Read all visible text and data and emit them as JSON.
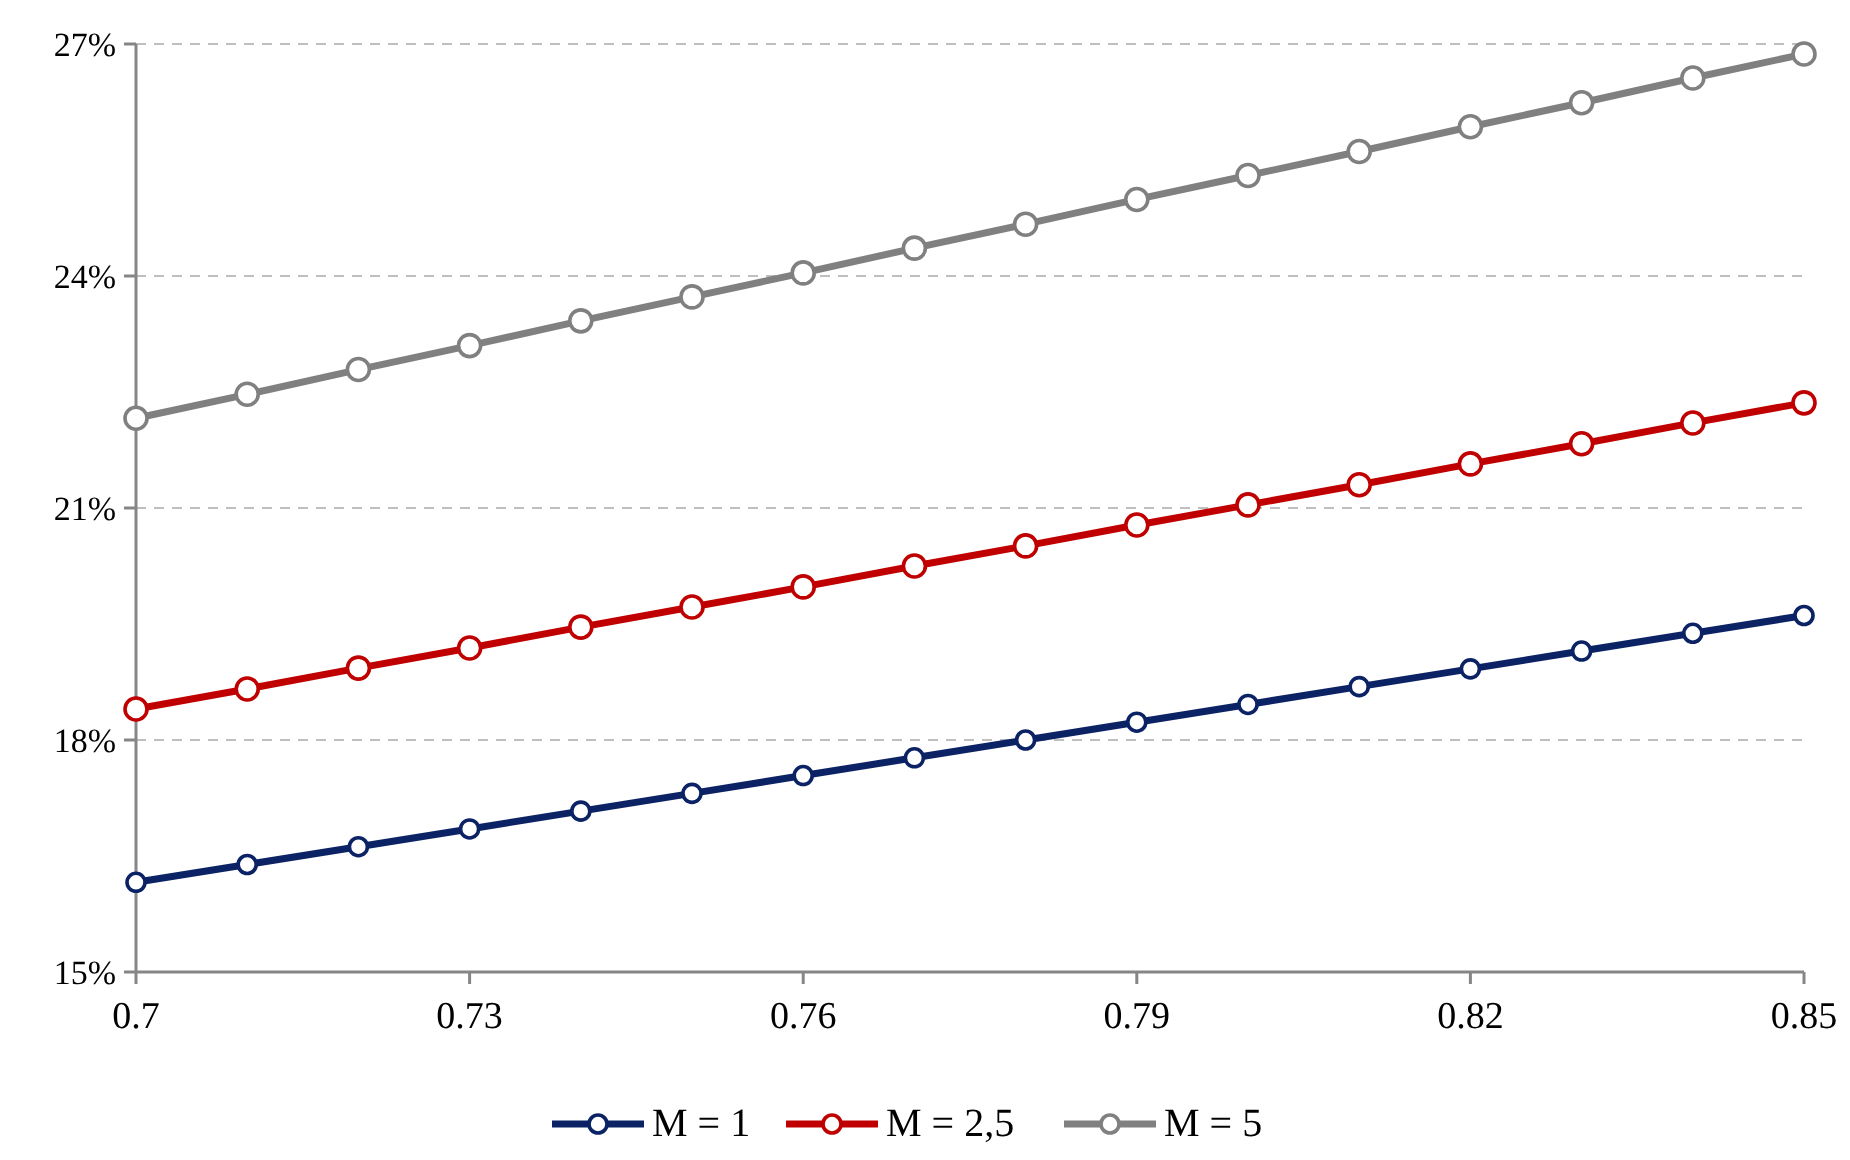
{
  "chart_data": {
    "type": "line",
    "x": [
      0.7,
      0.71,
      0.72,
      0.73,
      0.74,
      0.75,
      0.76,
      0.77,
      0.78,
      0.79,
      0.8,
      0.81,
      0.82,
      0.83,
      0.84,
      0.85
    ],
    "series": [
      {
        "name": "M = 1",
        "color": "#0b2265",
        "values": [
          16.16,
          16.39,
          16.62,
          16.85,
          17.08,
          17.31,
          17.54,
          17.77,
          18.0,
          18.23,
          18.46,
          18.69,
          18.92,
          19.15,
          19.38,
          19.61
        ]
      },
      {
        "name": "M = 2,5",
        "color": "#c00000",
        "values": [
          18.4,
          18.66,
          18.93,
          19.19,
          19.46,
          19.72,
          19.98,
          20.25,
          20.51,
          20.78,
          21.04,
          21.3,
          21.57,
          21.83,
          22.1,
          22.36
        ]
      },
      {
        "name": "M = 5",
        "color": "#808080",
        "values": [
          22.16,
          22.47,
          22.79,
          23.1,
          23.42,
          23.73,
          24.04,
          24.36,
          24.67,
          24.99,
          25.3,
          25.61,
          25.93,
          26.24,
          26.56,
          26.87
        ]
      }
    ],
    "xlim": [
      0.7,
      0.85
    ],
    "xticks": [
      0.7,
      0.73,
      0.76,
      0.79,
      0.82,
      0.85
    ],
    "ylim": [
      15,
      27
    ],
    "yticks": [
      {
        "value": 15,
        "label": "15%"
      },
      {
        "value": 18,
        "label": "18%"
      },
      {
        "value": 21,
        "label": "21%"
      },
      {
        "value": 24,
        "label": "24%"
      },
      {
        "value": 27,
        "label": "27%"
      }
    ],
    "grid": "y",
    "legend": "bottom",
    "marker": "circle",
    "line_style": "solid"
  }
}
